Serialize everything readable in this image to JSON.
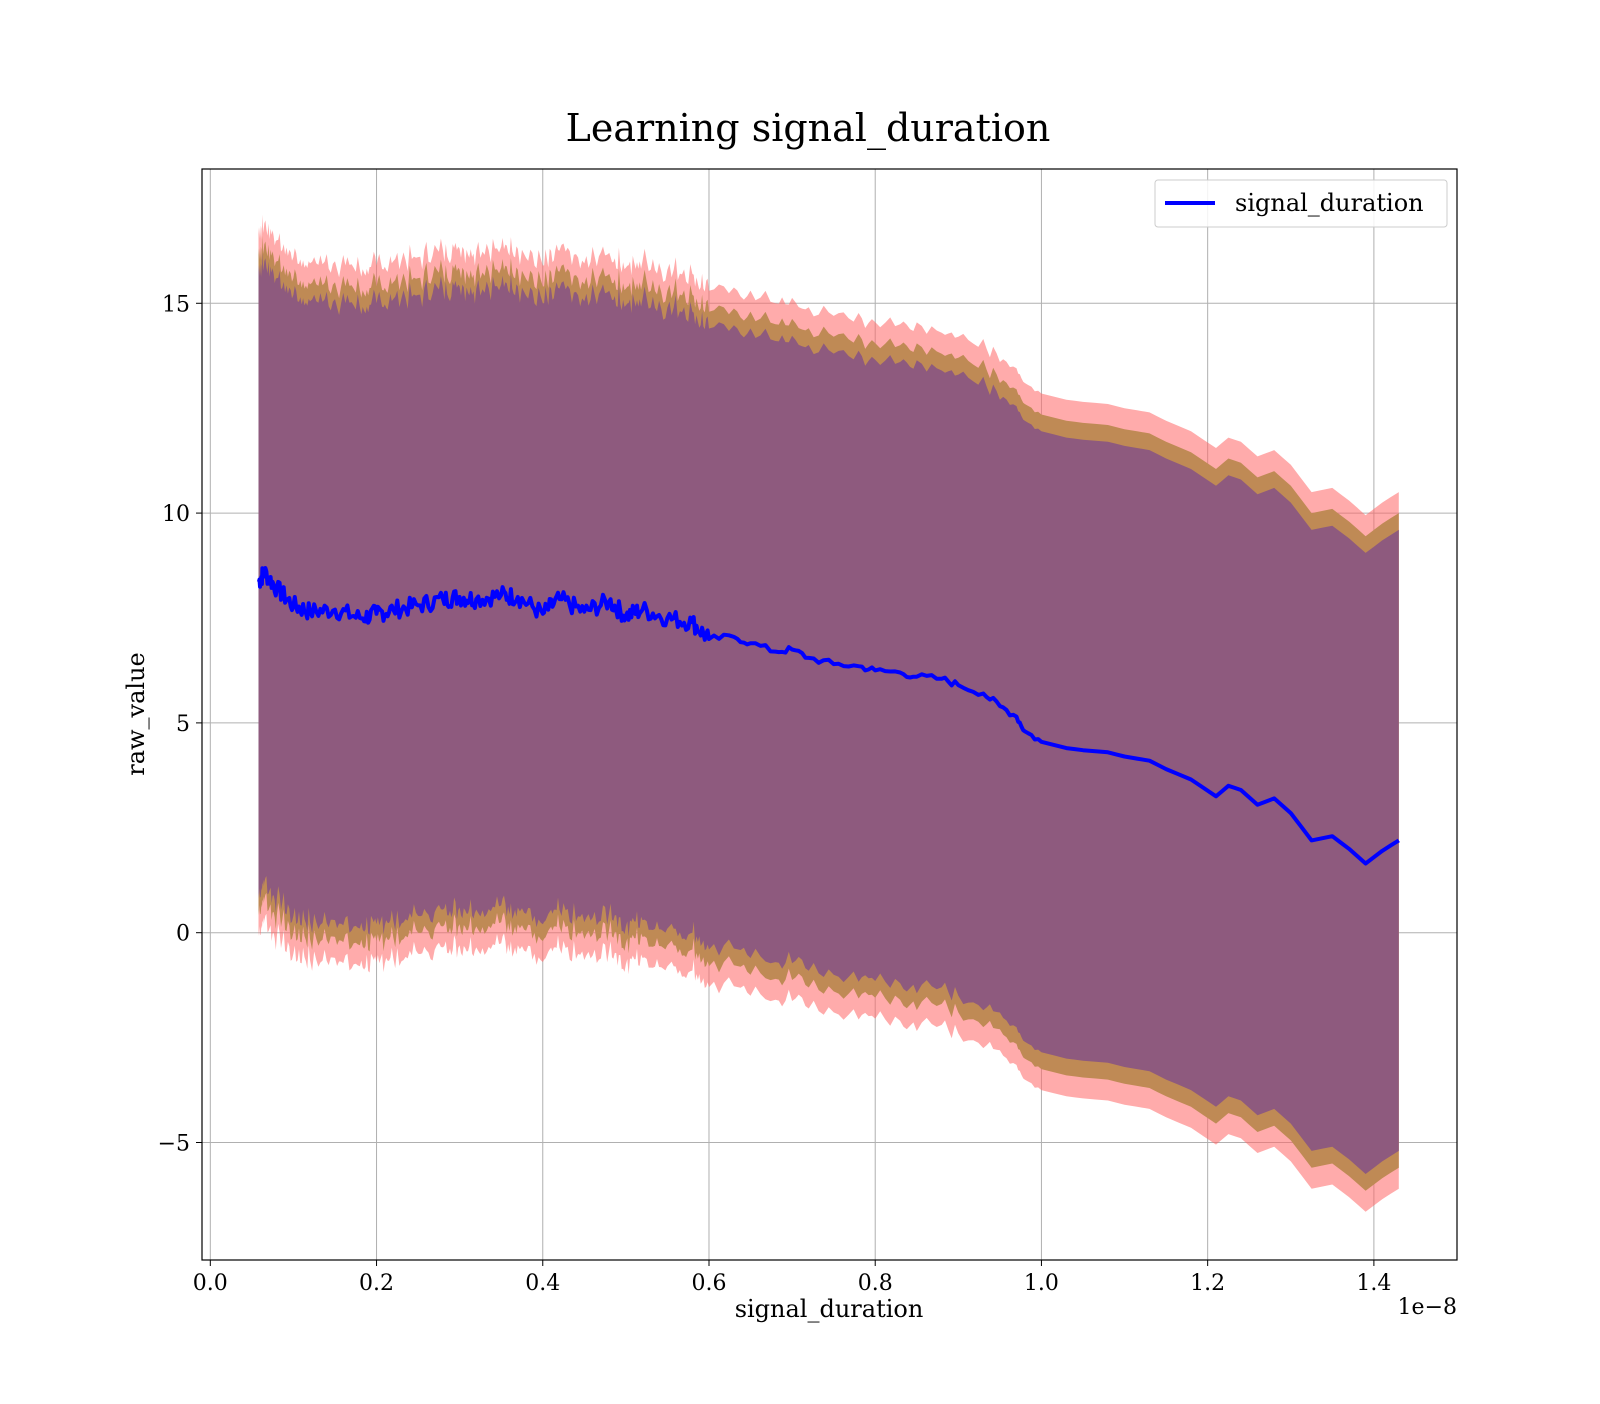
{
  "chart_data": {
    "type": "line",
    "title": "Learning signal_duration",
    "xlabel": "signal_duration",
    "ylabel": "raw_value",
    "x_offset_text": "1e−8",
    "xlim": [
      -0.01,
      1.5
    ],
    "ylim": [
      -7.8,
      18.2
    ],
    "x_ticks": [
      0.0,
      0.2,
      0.4,
      0.6,
      0.8,
      1.0,
      1.2,
      1.4
    ],
    "x_tick_labels": [
      "0.0",
      "0.2",
      "0.4",
      "0.6",
      "0.8",
      "1.0",
      "1.2",
      "1.4"
    ],
    "y_ticks": [
      -5,
      0,
      5,
      10,
      15
    ],
    "y_tick_labels": [
      "−5",
      "0",
      "5",
      "10",
      "15"
    ],
    "grid": true,
    "legend_position": "top-right",
    "colors": {
      "line": "#0000ff",
      "band_outer": "#ff6666",
      "band_middle": "#bf8a55",
      "band_inner": "#8e5a7e",
      "grid": "#b0b0b0"
    },
    "series": [
      {
        "name": "signal_duration",
        "x": [
          0.058,
          0.065,
          0.08,
          0.1,
          0.12,
          0.15,
          0.18,
          0.2,
          0.22,
          0.25,
          0.28,
          0.3,
          0.32,
          0.35,
          0.37,
          0.4,
          0.42,
          0.45,
          0.48,
          0.5,
          0.52,
          0.55,
          0.58,
          0.6,
          0.63,
          0.65,
          0.68,
          0.7,
          0.72,
          0.75,
          0.78,
          0.8,
          0.83,
          0.85,
          0.88,
          0.9,
          0.93,
          0.95,
          0.97,
          0.98,
          1.0,
          1.03,
          1.05,
          1.08,
          1.1,
          1.13,
          1.15,
          1.18,
          1.21,
          1.225,
          1.24,
          1.26,
          1.28,
          1.3,
          1.325,
          1.35,
          1.37,
          1.39,
          1.41,
          1.43
        ],
        "y": [
          8.35,
          8.6,
          8.2,
          7.8,
          7.65,
          7.7,
          7.5,
          7.6,
          7.7,
          7.8,
          7.95,
          8.0,
          7.95,
          8.05,
          8.0,
          7.6,
          7.95,
          7.65,
          7.9,
          7.55,
          7.7,
          7.5,
          7.4,
          7.0,
          7.05,
          6.9,
          6.7,
          6.75,
          6.55,
          6.4,
          6.35,
          6.25,
          6.2,
          6.1,
          6.05,
          5.9,
          5.7,
          5.4,
          5.15,
          4.8,
          4.55,
          4.4,
          4.35,
          4.3,
          4.2,
          4.1,
          3.9,
          3.65,
          3.25,
          3.5,
          3.4,
          3.05,
          3.2,
          2.85,
          2.2,
          2.3,
          2.0,
          1.65,
          1.95,
          2.2
        ]
      }
    ],
    "bands": [
      {
        "half_width": 8.3,
        "color": "band_outer"
      },
      {
        "half_width": 7.8,
        "color": "band_middle"
      },
      {
        "half_width": 7.4,
        "color": "band_inner"
      }
    ]
  }
}
